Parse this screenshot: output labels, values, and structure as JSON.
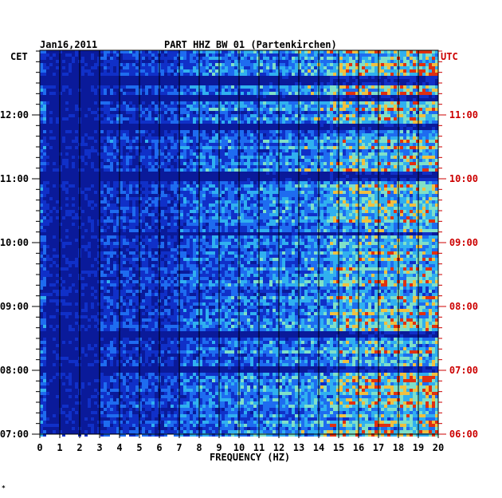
{
  "chart_data": {
    "type": "heatmap",
    "date": "Jan16,2011",
    "title": "PART HHZ BW 01 (Partenkirchen)",
    "left_axis_label": "CET",
    "right_axis_label": "UTC",
    "xlabel": "FREQUENCY (HZ)",
    "x_ticks": [
      "0",
      "1",
      "2",
      "3",
      "4",
      "5",
      "6",
      "7",
      "8",
      "9",
      "10",
      "11",
      "12",
      "13",
      "14",
      "15",
      "16",
      "17",
      "18",
      "19",
      "20"
    ],
    "xlim": [
      0,
      20
    ],
    "left_ticks": [
      "12:00",
      "11:00",
      "10:00",
      "09:00",
      "08:00",
      "07:00"
    ],
    "right_ticks": [
      "11:00",
      "10:00",
      "09:00",
      "08:00",
      "07:00",
      "06:00"
    ],
    "time_range_cet": [
      "07:00",
      "12:55"
    ],
    "grid": true,
    "colors": {
      "low": "#0a1a9a",
      "mid": "#1e6cf0",
      "high": "#7fe0c8",
      "peak": "#f0c040",
      "max": "#e03010",
      "utc_label": "#cc0000"
    },
    "footer_mark": "*"
  }
}
